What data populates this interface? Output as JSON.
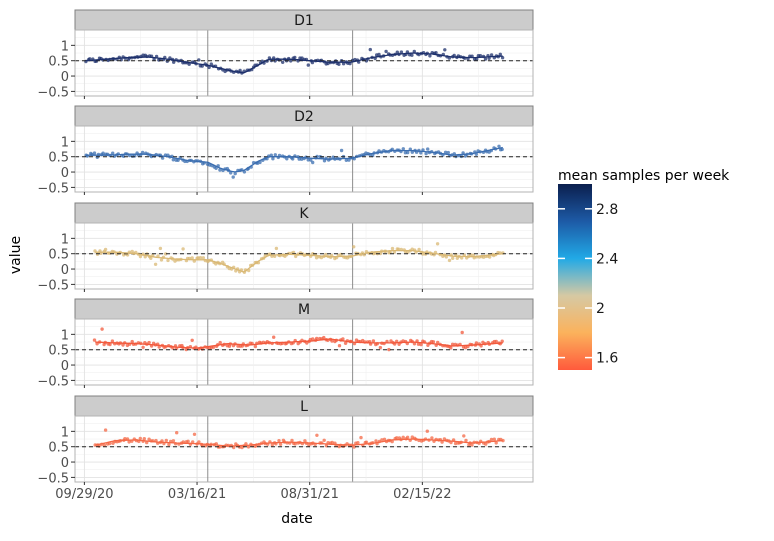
{
  "chart_data": {
    "type": "scatter",
    "xlabel": "date",
    "ylabel": "value",
    "x_ticks": [
      "09/29/20",
      "03/16/21",
      "08/31/21",
      "02/15/22"
    ],
    "y_ticks": [
      "1",
      "0.5",
      "0",
      "−0.5"
    ],
    "y_tick_values": [
      1,
      0.5,
      0,
      -0.5
    ],
    "ylim": [
      -0.65,
      1.5
    ],
    "xlim": [
      "2020-09-15",
      "2022-07-30"
    ],
    "reference_hline": 0.5,
    "reference_vlines": [
      "2021-04-01",
      "2021-11-03"
    ],
    "grid": true,
    "legend": {
      "title": "mean samples per week",
      "position": "right",
      "type": "colorbar",
      "labels": [
        "2.8",
        "2.4",
        "2",
        "1.6"
      ],
      "values": [
        2.8,
        2.4,
        2.0,
        1.6
      ],
      "range": [
        1.5,
        3.0
      ],
      "colors": [
        "#FF5A3C",
        "#FBB25C",
        "#D6C9A3",
        "#21A9E6",
        "#1D5AA6",
        "#0B1F4E"
      ]
    },
    "panels": [
      {
        "name": "D1",
        "color": "#1C2F6B",
        "x": [
          "2020-10-01",
          "2020-11-01",
          "2020-12-01",
          "2021-01-01",
          "2021-02-01",
          "2021-03-01",
          "2021-04-01",
          "2021-04-20",
          "2021-05-10",
          "2021-05-25",
          "2021-06-15",
          "2021-07-01",
          "2021-08-01",
          "2021-09-01",
          "2021-10-01",
          "2021-11-01",
          "2021-12-01",
          "2022-01-01",
          "2022-02-01",
          "2022-03-01",
          "2022-04-01",
          "2022-05-01",
          "2022-06-15"
        ],
        "values": [
          0.5,
          0.55,
          0.6,
          0.62,
          0.55,
          0.45,
          0.35,
          0.25,
          0.15,
          0.1,
          0.35,
          0.55,
          0.55,
          0.5,
          0.45,
          0.45,
          0.6,
          0.7,
          0.75,
          0.72,
          0.62,
          0.6,
          0.65
        ]
      },
      {
        "name": "D2",
        "color": "#3A6DB0",
        "x": [
          "2020-10-01",
          "2020-11-01",
          "2020-12-01",
          "2021-01-01",
          "2021-02-01",
          "2021-03-01",
          "2021-04-01",
          "2021-04-20",
          "2021-05-10",
          "2021-05-25",
          "2021-06-15",
          "2021-07-01",
          "2021-08-01",
          "2021-09-01",
          "2021-10-01",
          "2021-11-01",
          "2021-12-01",
          "2022-01-01",
          "2022-02-01",
          "2022-03-01",
          "2022-04-01",
          "2022-05-01",
          "2022-06-15"
        ],
        "values": [
          0.55,
          0.55,
          0.58,
          0.58,
          0.5,
          0.38,
          0.32,
          0.12,
          0.0,
          0.05,
          0.35,
          0.5,
          0.5,
          0.45,
          0.42,
          0.45,
          0.6,
          0.7,
          0.7,
          0.65,
          0.55,
          0.6,
          0.8
        ]
      },
      {
        "name": "K",
        "color": "#D9B874",
        "x": [
          "2020-10-15",
          "2020-11-15",
          "2020-12-15",
          "2021-01-15",
          "2021-02-15",
          "2021-03-15",
          "2021-04-01",
          "2021-04-20",
          "2021-05-10",
          "2021-05-25",
          "2021-06-15",
          "2021-07-01",
          "2021-08-01",
          "2021-09-01",
          "2021-10-01",
          "2021-11-01",
          "2021-12-01",
          "2022-01-01",
          "2022-02-01",
          "2022-03-01",
          "2022-04-01",
          "2022-05-01",
          "2022-06-15"
        ],
        "values": [
          0.55,
          0.55,
          0.5,
          0.38,
          0.32,
          0.3,
          0.3,
          0.18,
          0.02,
          -0.1,
          0.25,
          0.45,
          0.48,
          0.45,
          0.4,
          0.42,
          0.55,
          0.6,
          0.6,
          0.52,
          0.42,
          0.4,
          0.5
        ]
      },
      {
        "name": "M",
        "color": "#F2593C",
        "x": [
          "2020-10-15",
          "2020-11-15",
          "2020-12-15",
          "2021-01-15",
          "2021-02-15",
          "2021-03-15",
          "2021-04-01",
          "2021-05-01",
          "2021-06-01",
          "2021-07-01",
          "2021-08-01",
          "2021-09-01",
          "2021-10-01",
          "2021-11-01",
          "2021-12-01",
          "2022-01-01",
          "2022-02-01",
          "2022-03-01",
          "2022-04-01",
          "2022-05-01",
          "2022-06-15"
        ],
        "values": [
          0.75,
          0.72,
          0.7,
          0.65,
          0.58,
          0.55,
          0.6,
          0.7,
          0.65,
          0.72,
          0.75,
          0.78,
          0.85,
          0.75,
          0.72,
          0.72,
          0.75,
          0.7,
          0.62,
          0.65,
          0.72
        ]
      },
      {
        "name": "L",
        "color": "#F46846",
        "x": [
          "2020-10-15",
          "2020-11-15",
          "2020-12-15",
          "2021-01-15",
          "2021-02-15",
          "2021-03-15",
          "2021-04-01",
          "2021-05-01",
          "2021-06-01",
          "2021-07-01",
          "2021-08-01",
          "2021-09-01",
          "2021-10-01",
          "2021-11-01",
          "2021-12-01",
          "2022-01-01",
          "2022-02-01",
          "2022-03-01",
          "2022-04-01",
          "2022-05-01",
          "2022-06-15"
        ],
        "values": [
          0.55,
          0.7,
          0.72,
          0.65,
          0.62,
          0.6,
          0.58,
          0.52,
          0.55,
          0.62,
          0.65,
          0.62,
          0.58,
          0.55,
          0.6,
          0.72,
          0.75,
          0.72,
          0.68,
          0.62,
          0.7
        ]
      }
    ]
  }
}
